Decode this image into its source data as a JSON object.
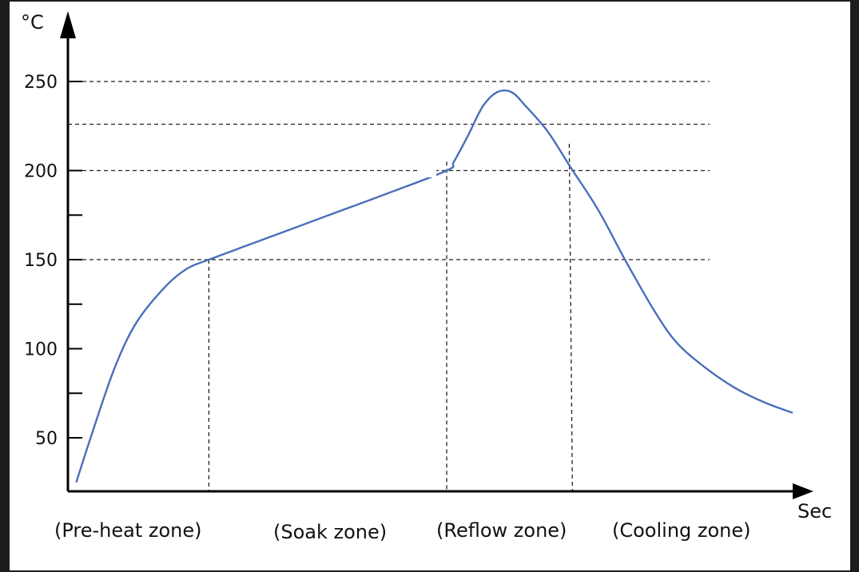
{
  "chart_data": {
    "type": "line",
    "title": "",
    "xlabel": "Sec",
    "ylabel": "°C",
    "y_ticks": [
      {
        "value": 250,
        "label": "250"
      },
      {
        "value": 200,
        "label": "200"
      },
      {
        "value": 150,
        "label": "150"
      },
      {
        "value": 100,
        "label": "100"
      },
      {
        "value": 50,
        "label": "50"
      }
    ],
    "y_minor_ticks": [
      175,
      125,
      75
    ],
    "ylim": [
      25,
      270
    ],
    "xlim": [
      0,
      100
    ],
    "grid_y_dashed": [
      250,
      226,
      200,
      150
    ],
    "zone_boundaries_x": [
      19,
      52,
      69
    ],
    "zones": [
      {
        "label": "(Pre-heat zone)"
      },
      {
        "label": "(Soak zone)"
      },
      {
        "label": "(Reflow zone)"
      },
      {
        "label": "(Cooling zone)"
      }
    ],
    "series": [
      {
        "color": "#4a6fb8",
        "points": [
          [
            0.6,
            25
          ],
          [
            3,
            55
          ],
          [
            6,
            90
          ],
          [
            9,
            115
          ],
          [
            13,
            135
          ],
          [
            16,
            145
          ],
          [
            19,
            150
          ],
          [
            25,
            159
          ],
          [
            31,
            168
          ],
          [
            37,
            177
          ],
          [
            43,
            186
          ],
          [
            52,
            200
          ],
          [
            53,
            205
          ],
          [
            55,
            220
          ],
          [
            57,
            236
          ],
          [
            59,
            244
          ],
          [
            61,
            244
          ],
          [
            63,
            236
          ],
          [
            66,
            222
          ],
          [
            69,
            203
          ],
          [
            73,
            178
          ],
          [
            77,
            148
          ],
          [
            81,
            120
          ],
          [
            84,
            103
          ],
          [
            88,
            89
          ],
          [
            92,
            78
          ],
          [
            96,
            70
          ],
          [
            100,
            64
          ]
        ]
      }
    ]
  }
}
